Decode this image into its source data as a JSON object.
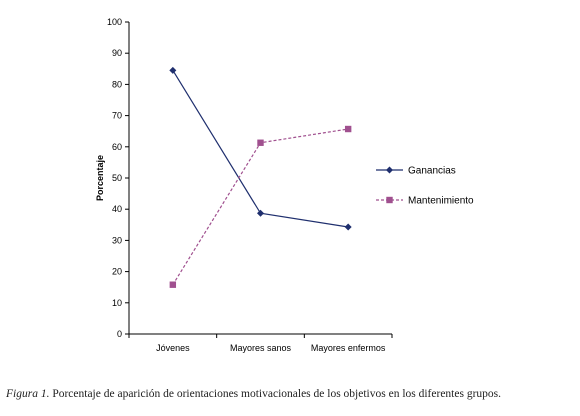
{
  "chart_data": {
    "type": "line",
    "categories": [
      "Jóvenes",
      "Mayores sanos",
      "Mayores enfermos"
    ],
    "series": [
      {
        "name": "Ganancias",
        "values": [
          84.5,
          38.7,
          34.3
        ],
        "color": "#1f2f6e",
        "marker": "diamond",
        "line": "solid"
      },
      {
        "name": "Mantenimiento",
        "values": [
          15.8,
          61.3,
          65.7
        ],
        "color": "#a0508f",
        "marker": "square",
        "line": "dashed"
      }
    ],
    "ylabel": "Porcentaje",
    "xlabel": "",
    "ylim": [
      0,
      100
    ],
    "yticks": [
      0,
      10,
      20,
      30,
      40,
      50,
      60,
      70,
      80,
      90,
      100
    ],
    "grid": false,
    "legend_position": "right"
  },
  "caption": {
    "label": "Figura 1.",
    "text": "Porcentaje de aparición de orientaciones motivacionales de los objetivos en los diferentes grupos."
  }
}
